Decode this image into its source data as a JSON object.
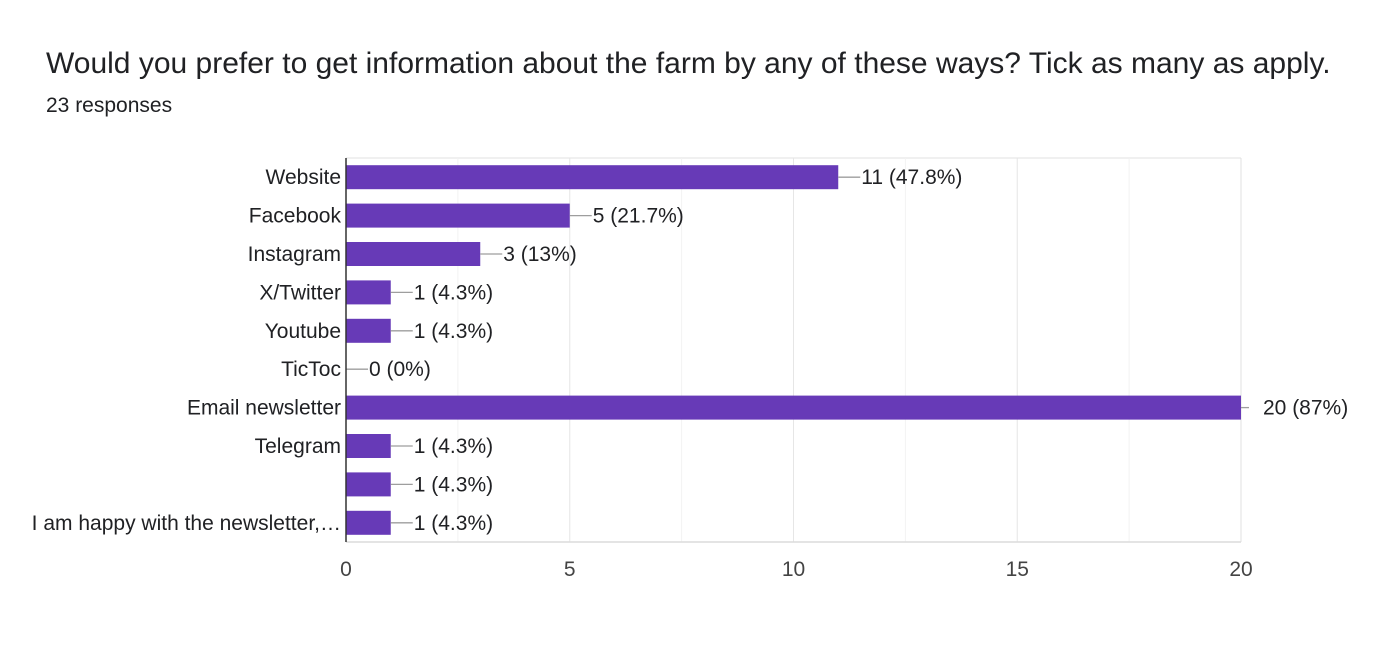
{
  "header": {
    "title": "Would you prefer to get information about the farm by any of these ways? Tick as many as apply.",
    "responses": "23 responses"
  },
  "chart_data": {
    "type": "bar",
    "orientation": "horizontal",
    "categories": [
      "Website",
      "Facebook",
      "Instagram",
      "X/Twitter",
      "Youtube",
      "TicToc",
      "Email newsletter",
      "Telegram",
      "",
      "I am happy with the newsletter,…"
    ],
    "values": [
      11,
      5,
      3,
      1,
      1,
      0,
      20,
      1,
      1,
      1
    ],
    "data_labels": [
      "11 (47.8%)",
      "5 (21.7%)",
      "3 (13%)",
      "1 (4.3%)",
      "1 (4.3%)",
      "0 (0%)",
      "20 (87%)",
      "1 (4.3%)",
      "1 (4.3%)",
      "1 (4.3%)"
    ],
    "xlim": [
      0,
      20
    ],
    "xticks": [
      0,
      5,
      10,
      15,
      20
    ],
    "grid": true,
    "bar_color": "#673ab7"
  }
}
